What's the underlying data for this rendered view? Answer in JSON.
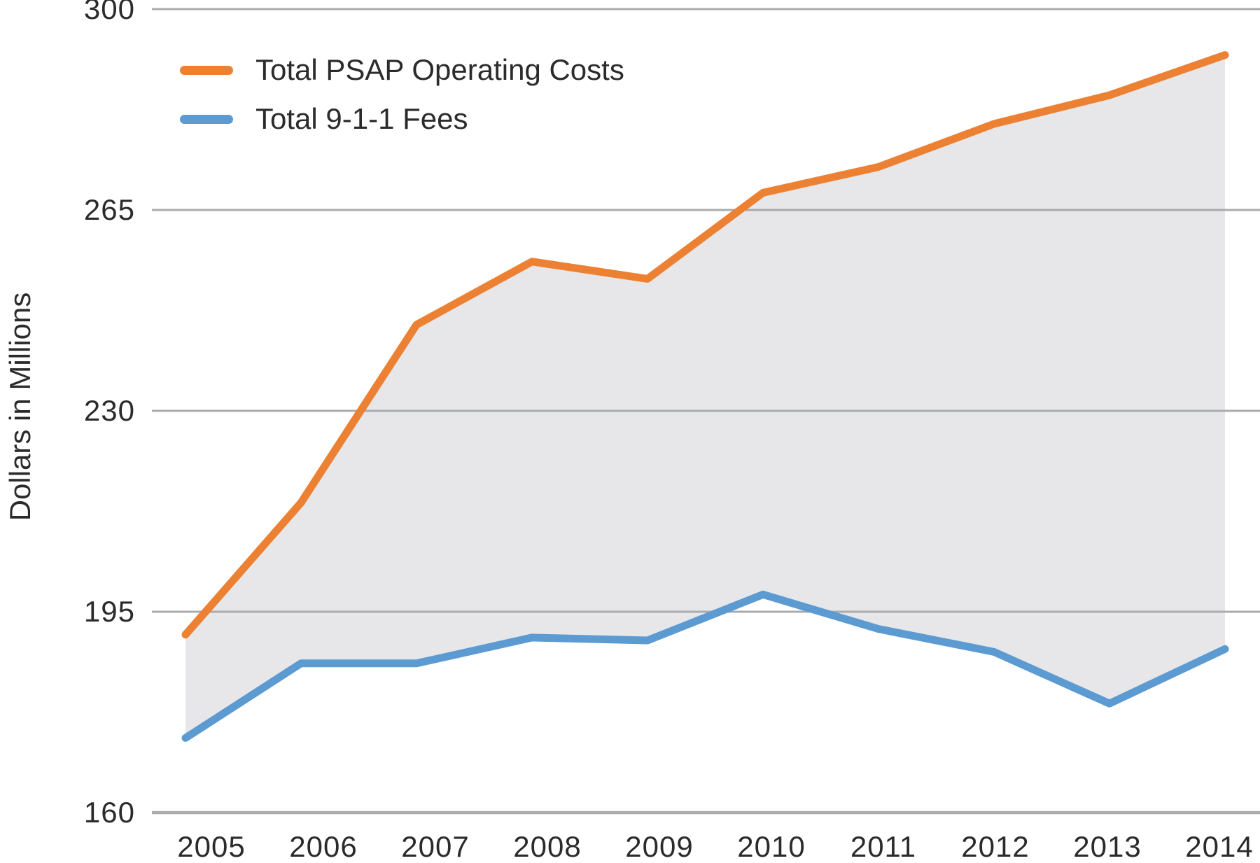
{
  "chart_data": {
    "type": "line",
    "title": "",
    "ylabel": "Dollars in Millions",
    "xlabel": "",
    "ylim": [
      160,
      300
    ],
    "yticks": [
      300,
      265,
      230,
      195,
      160
    ],
    "x_categories": [
      "2005",
      "2006",
      "2007",
      "2008",
      "2009",
      "2010",
      "2011",
      "2012",
      "2013",
      "2014"
    ],
    "grid": "horizontal",
    "legend_position": "top-left",
    "fill_between_series": true,
    "series": [
      {
        "name": "Total PSAP Operating Costs",
        "color": "#ED8133",
        "values": [
          191,
          214,
          245,
          256,
          253,
          268,
          272.5,
          280,
          285,
          292
        ]
      },
      {
        "name": "Total 9-1-1 Fees",
        "color": "#5C9AD2",
        "values": [
          173,
          186,
          186,
          190.5,
          190,
          198,
          192,
          188,
          179,
          188.5
        ]
      }
    ],
    "colors": {
      "band_fill": "#E7E7E9",
      "gridline": "#A9ABAD",
      "baseline": "#ABABAB",
      "text": "#2B2B2B"
    }
  }
}
